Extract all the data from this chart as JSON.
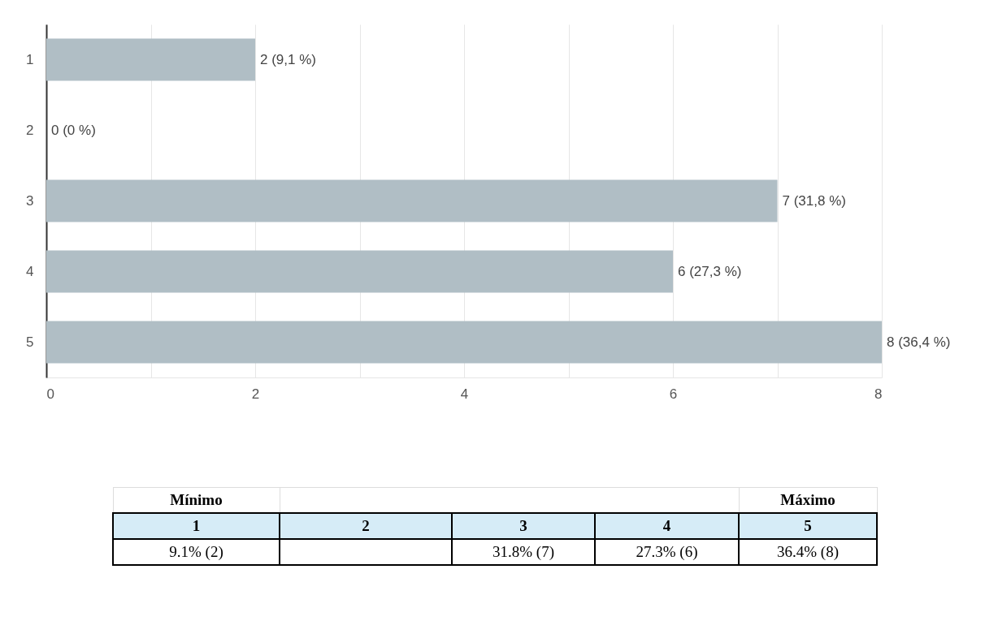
{
  "chart_data": {
    "type": "bar",
    "orientation": "horizontal",
    "categories": [
      "1",
      "2",
      "3",
      "4",
      "5"
    ],
    "values": [
      2,
      0,
      7,
      6,
      8
    ],
    "color": "#b0bec5",
    "value_labels": [
      "2 (9,1 %)",
      "0 (0 %)",
      "7 (31,8 %)",
      "6 (27,3 %)",
      "8 (36,4 %)"
    ],
    "xlim": [
      0,
      8
    ],
    "xticks": [
      0,
      {
        "value": 1,
        "label": null
      },
      2,
      {
        "value": 3,
        "label": null
      },
      4,
      {
        "value": 5,
        "label": null
      },
      6,
      {
        "value": 7,
        "label": null
      },
      8
    ],
    "grid": "x",
    "annotations": [
      "Mínimo",
      "Máximo",
      "9.1% (2)",
      "31.8% (7)",
      "27.3% (6)",
      "36.4% (8)"
    ]
  }
}
